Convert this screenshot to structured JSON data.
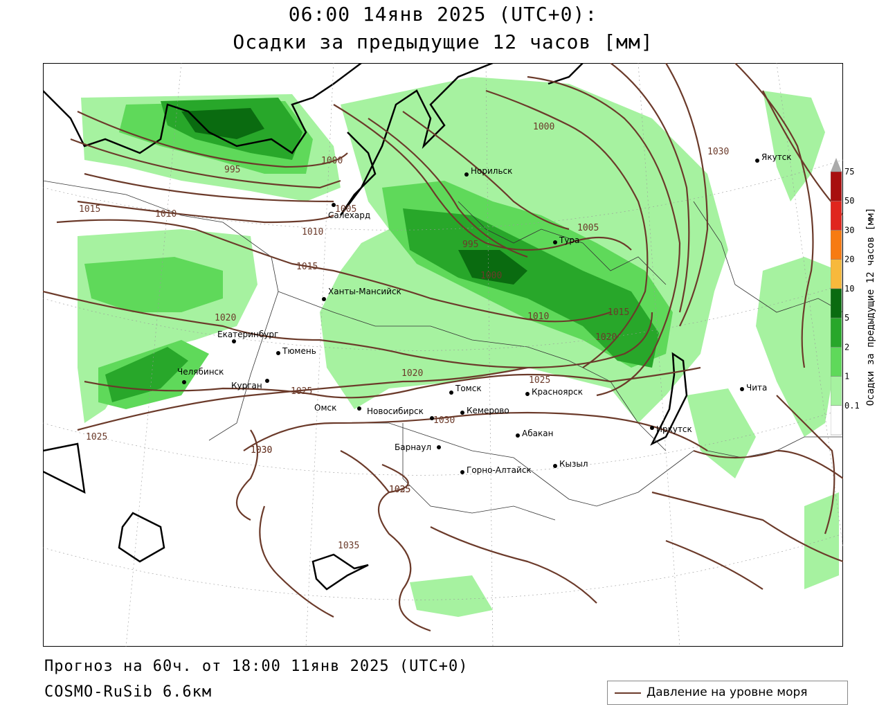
{
  "title_line1": "06:00 14янв 2025 (UTC+0):",
  "title_line2": "Осадки за предыдущие 12 часов [мм]",
  "forecast_line": "Прогноз на 60ч. от 18:00 11янв 2025 (UTC+0)",
  "model_line": "COSMO-RuSib 6.6км",
  "legend": {
    "label": "Давление на уровне моря",
    "color": "#6b3a2a"
  },
  "colorbar": {
    "axis_label": "Осадки за предыдущие 12 часов [мм]",
    "levels": [
      "0.1",
      "1",
      "2",
      "5",
      "10",
      "20",
      "30",
      "50",
      "75"
    ],
    "colors": [
      "#ffffff",
      "#a6f2a0",
      "#5fd95a",
      "#28a72a",
      "#0a6b10",
      "#f7b93c",
      "#f77b12",
      "#e0261e",
      "#a80f0f"
    ]
  },
  "cities": [
    {
      "name": "Якутск"
    },
    {
      "name": "Норильск"
    },
    {
      "name": "Салехард"
    },
    {
      "name": "Тура"
    },
    {
      "name": "Ханты-Мансийск"
    },
    {
      "name": "Екатеринбург"
    },
    {
      "name": "Тюмень"
    },
    {
      "name": "Челябинск"
    },
    {
      "name": "Курган"
    },
    {
      "name": "Омск"
    },
    {
      "name": "Новосибирск"
    },
    {
      "name": "Томск"
    },
    {
      "name": "Красноярск"
    },
    {
      "name": "Кемерово"
    },
    {
      "name": "Барнаул"
    },
    {
      "name": "Абакан"
    },
    {
      "name": "Горно-Алтайск"
    },
    {
      "name": "Кызыл"
    },
    {
      "name": "Иркутск"
    },
    {
      "name": "Чита"
    }
  ],
  "isobar_labels": [
    "995",
    "1000",
    "1005",
    "1010",
    "1015",
    "1020",
    "1025",
    "1030",
    "1035",
    "1000",
    "1005",
    "995",
    "1000",
    "1010",
    "1015",
    "1020",
    "1025",
    "1030",
    "1035",
    "1030",
    "1010",
    "1015",
    "1020",
    "1025",
    "1025",
    "1030"
  ]
}
